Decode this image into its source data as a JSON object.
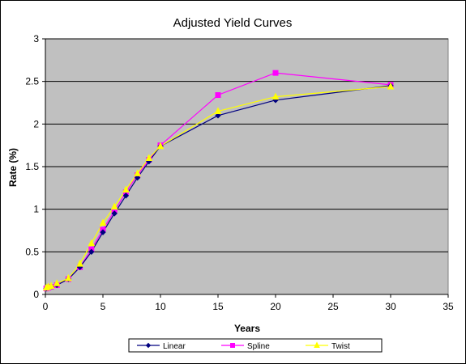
{
  "chart_data": {
    "type": "line",
    "title": "Adjusted Yield Curves",
    "xlabel": "Years",
    "ylabel": "Rate (%)",
    "xlim": [
      0,
      35
    ],
    "ylim": [
      0,
      3
    ],
    "x_ticks": [
      "0",
      "5",
      "10",
      "15",
      "20",
      "25",
      "30",
      "35"
    ],
    "y_ticks": [
      "0",
      "0.5",
      "1",
      "1.5",
      "2",
      "2.5",
      "3"
    ],
    "grid": "horizontal",
    "plot_background": "#c0c0c0",
    "legend_position": "bottom",
    "series": [
      {
        "name": "Linear",
        "color": "#000080",
        "marker": "diamond",
        "points": [
          [
            0.08,
            0.07
          ],
          [
            0.25,
            0.08
          ],
          [
            0.5,
            0.09
          ],
          [
            1,
            0.11
          ],
          [
            2,
            0.18
          ],
          [
            3,
            0.32
          ],
          [
            4,
            0.5
          ],
          [
            5,
            0.73
          ],
          [
            6,
            0.95
          ],
          [
            7,
            1.16
          ],
          [
            8,
            1.37
          ],
          [
            9,
            1.56
          ],
          [
            10,
            1.74
          ],
          [
            15,
            2.1
          ],
          [
            20,
            2.28
          ],
          [
            30,
            2.45
          ]
        ]
      },
      {
        "name": "Spline",
        "color": "#ff00ff",
        "marker": "square",
        "points": [
          [
            0.08,
            0.07
          ],
          [
            0.25,
            0.08
          ],
          [
            0.5,
            0.09
          ],
          [
            1,
            0.11
          ],
          [
            2,
            0.18
          ],
          [
            3,
            0.32
          ],
          [
            4,
            0.53
          ],
          [
            5,
            0.76
          ],
          [
            6,
            0.98
          ],
          [
            7,
            1.2
          ],
          [
            8,
            1.4
          ],
          [
            9,
            1.58
          ],
          [
            10,
            1.75
          ],
          [
            15,
            2.34
          ],
          [
            20,
            2.6
          ],
          [
            30,
            2.46
          ]
        ]
      },
      {
        "name": "Twist",
        "color": "#ffff00",
        "marker": "triangle",
        "points": [
          [
            0.08,
            0.08
          ],
          [
            0.25,
            0.09
          ],
          [
            0.5,
            0.1
          ],
          [
            1,
            0.13
          ],
          [
            2,
            0.19
          ],
          [
            3,
            0.36
          ],
          [
            4,
            0.6
          ],
          [
            5,
            0.84
          ],
          [
            6,
            1.03
          ],
          [
            7,
            1.23
          ],
          [
            8,
            1.42
          ],
          [
            9,
            1.6
          ],
          [
            10,
            1.74
          ],
          [
            15,
            2.15
          ],
          [
            20,
            2.32
          ],
          [
            30,
            2.44
          ]
        ]
      }
    ]
  }
}
